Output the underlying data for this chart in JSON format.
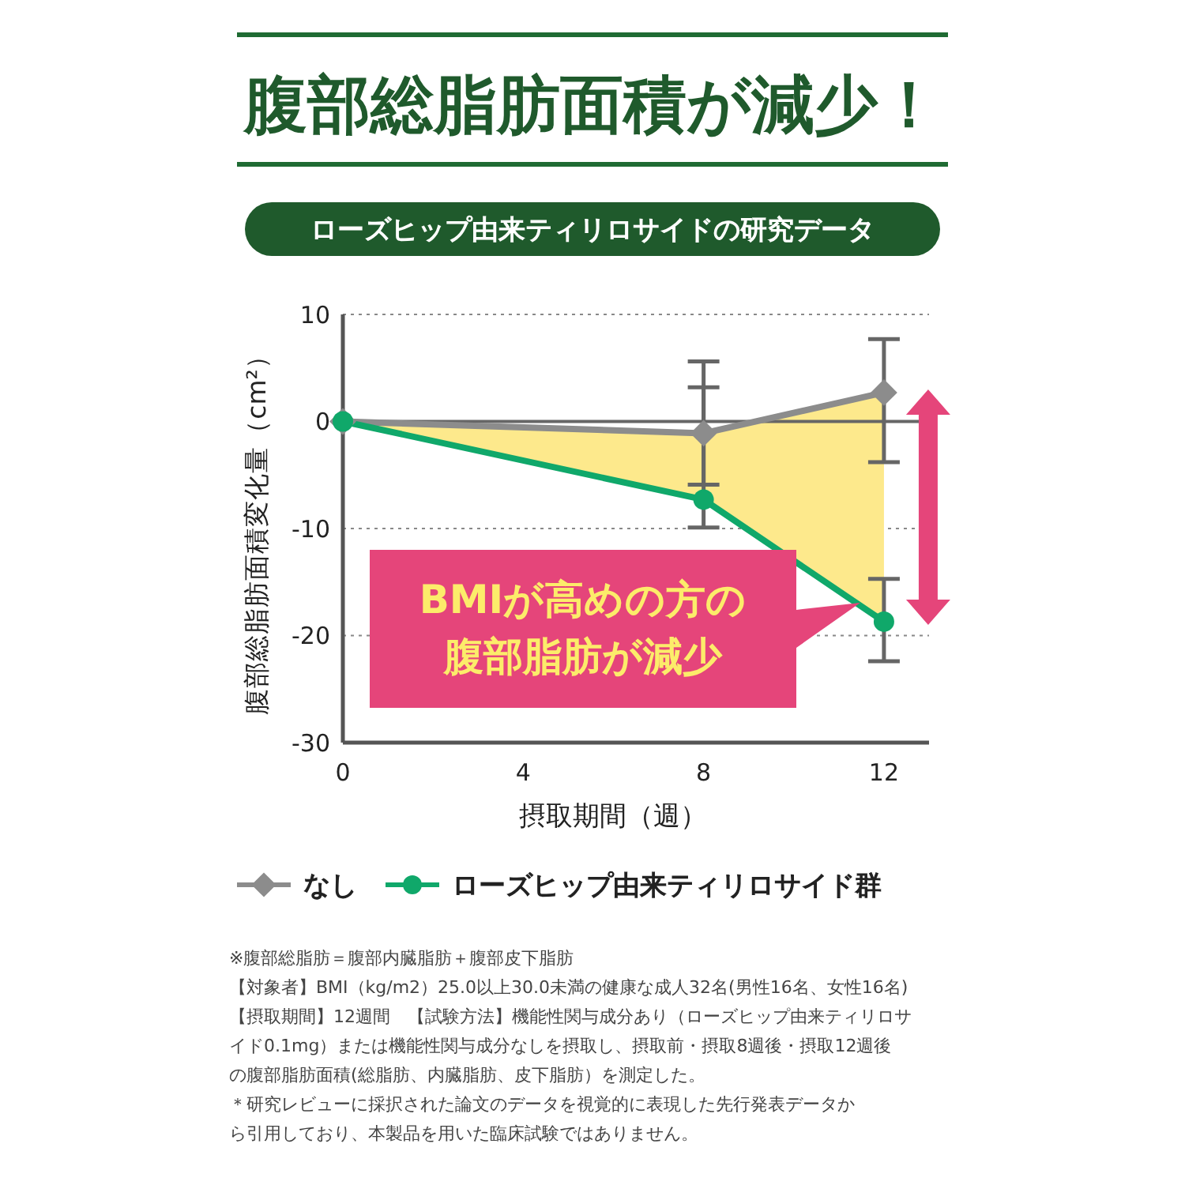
{
  "chart_data": {
    "type": "line",
    "title": "腹部総脂肪面積が減少！",
    "subtitle": "ローズヒップ由来ティリロサイドの研究データ",
    "xlabel": "摂取期間（週）",
    "ylabel": "腹部総脂肪面積変化量（cm²）",
    "x": [
      0,
      8,
      12
    ],
    "xlim": [
      0,
      13
    ],
    "xticks": [
      0,
      4,
      8,
      12
    ],
    "ylim": [
      -30,
      10
    ],
    "yticks": [
      -30,
      -20,
      -10,
      0,
      10
    ],
    "grid": "y",
    "legend": "bottom",
    "series": [
      {
        "name": "なし",
        "color": "#8c8c8c",
        "marker": "diamond",
        "values": [
          0,
          -1.1,
          2.7
        ],
        "errors": [
          null,
          [
            -5.9,
            5.6
          ],
          [
            -3.8,
            7.7
          ]
        ]
      },
      {
        "name": "ローズヒップ由来ティリロサイド群",
        "color": "#10a86a",
        "marker": "circle",
        "values": [
          0,
          -7.3,
          -18.7
        ],
        "errors": [
          null,
          [
            -9.9,
            3.2
          ],
          [
            -22.4,
            -14.7
          ]
        ],
        "lower": [
          0,
          -7.3,
          -18.7
        ],
        "upper": [
          0,
          -1.1,
          2.7
        ]
      }
    ],
    "ref_lines": [
      {
        "axis": "y",
        "value": 0,
        "color": "#666666"
      }
    ],
    "annotations": [
      "BMIが高めの方の腹部脂肪が減少",
      "※腹部総脂肪＝腹部内臓脂肪＋腹部皮下脂肪",
      "【対象者】BMI（kg/m2）25.0以上30.0未満の健康な成人32名(男性16名、女性16名)",
      "【摂取期間】12週間　【試験方法】機能性関与成分あり（ローズヒップ由来ティリロサ",
      "イド0.1mg）または機能性関与成分なしを摂取し、摂取前・摂取8週後・摂取12週後",
      "の腹部脂肪面積(総脂肪、内臓脂肪、皮下脂肪）を測定した。",
      "＊研究レビューに採択された論文のデータを視覚的に表現した先行発表データか",
      "ら引用しており、本製品を用いた臨床試験ではありません。"
    ]
  }
}
